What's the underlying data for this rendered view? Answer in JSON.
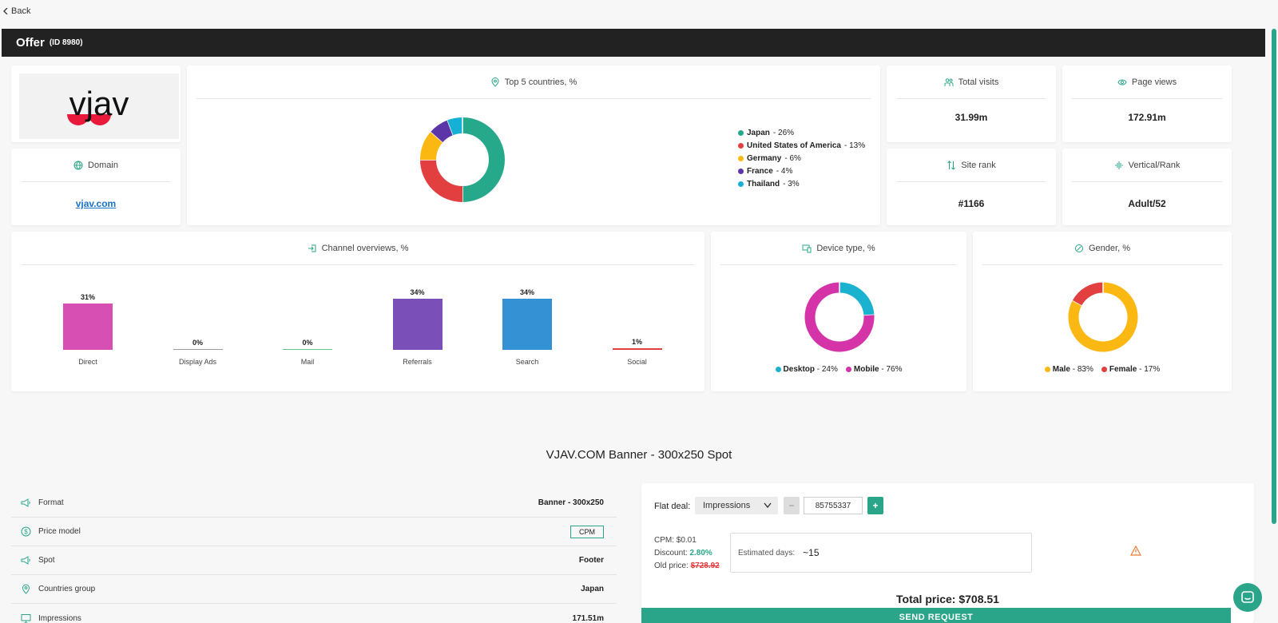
{
  "nav": {
    "back_label": "Back"
  },
  "header": {
    "title": "Offer",
    "id_label": "(ID 8980)"
  },
  "logo": {
    "text": "vjav"
  },
  "domain": {
    "title": "Domain",
    "value": "vjav.com"
  },
  "countries": {
    "title": "Top 5 countries, %",
    "items": [
      {
        "label": "Japan",
        "suffix": " - 26%",
        "color": "#26a98b"
      },
      {
        "label": "United States of America",
        "suffix": " - 13%",
        "color": "#e24040"
      },
      {
        "label": "Germany",
        "suffix": " - 6%",
        "color": "#fbb812"
      },
      {
        "label": "France",
        "suffix": " - 4%",
        "color": "#5c35a8"
      },
      {
        "label": "Thailand",
        "suffix": " - 3%",
        "color": "#16b0d6"
      }
    ]
  },
  "stats": {
    "total_visits": {
      "title": "Total visits",
      "value": "31.99m"
    },
    "page_views": {
      "title": "Page views",
      "value": "172.91m"
    },
    "site_rank": {
      "title": "Site rank",
      "value": "#1166"
    },
    "vertical_rank": {
      "title": "Vertical/Rank",
      "value": "Adult/52"
    }
  },
  "channels": {
    "title": "Channel overviews, %"
  },
  "device": {
    "title": "Device type, %",
    "items": [
      {
        "label": "Desktop",
        "suffix": " - 24%",
        "color": "#1ab2cf"
      },
      {
        "label": "Mobile",
        "suffix": " - 76%",
        "color": "#d434a8"
      }
    ]
  },
  "gender": {
    "title": "Gender, %",
    "items": [
      {
        "label": "Male",
        "suffix": " - 83%",
        "color": "#fbb812"
      },
      {
        "label": "Female",
        "suffix": " - 17%",
        "color": "#e24040"
      }
    ]
  },
  "chart_data": [
    {
      "type": "pie",
      "title": "Top 5 countries, %",
      "categories": [
        "Japan",
        "United States of America",
        "Germany",
        "France",
        "Thailand"
      ],
      "values": [
        26,
        13,
        6,
        4,
        3
      ],
      "colors": [
        "#26a98b",
        "#e24040",
        "#fbb812",
        "#5c35a8",
        "#16b0d6"
      ]
    },
    {
      "type": "bar",
      "title": "Channel overviews, %",
      "categories": [
        "Direct",
        "Display Ads",
        "Mail",
        "Referrals",
        "Search",
        "Social"
      ],
      "values": [
        31,
        0,
        0,
        34,
        34,
        1
      ],
      "value_labels": [
        "31%",
        "0%",
        "0%",
        "34%",
        "34%",
        "1%"
      ],
      "colors": [
        "#d84fb4",
        "#9e9e9e",
        "#5cc98a",
        "#7b4fb8",
        "#3492d4",
        "#e24040"
      ],
      "ylim": [
        0,
        34
      ]
    },
    {
      "type": "pie",
      "title": "Device type, %",
      "categories": [
        "Desktop",
        "Mobile"
      ],
      "values": [
        24,
        76
      ],
      "colors": [
        "#1ab2cf",
        "#d434a8"
      ]
    },
    {
      "type": "pie",
      "title": "Gender, %",
      "categories": [
        "Male",
        "Female"
      ],
      "values": [
        83,
        17
      ],
      "colors": [
        "#fbb812",
        "#e24040"
      ]
    }
  ],
  "product": {
    "title": "VJAV.COM Banner - 300x250 Spot"
  },
  "details": [
    {
      "label": "Format",
      "value": "Banner - 300x250",
      "icon": "megaphone-icon"
    },
    {
      "label": "Price model",
      "value": "CPM",
      "icon": "dollar-icon"
    },
    {
      "label": "Spot",
      "value": "Footer",
      "icon": "megaphone-icon"
    },
    {
      "label": "Countries group",
      "value": "Japan",
      "icon": "location-icon"
    },
    {
      "label": "Impressions",
      "value": "171.51m",
      "icon": "monitor-icon"
    }
  ],
  "deal": {
    "flat_label": "Flat deal:",
    "select_value": "Impressions",
    "minus": "−",
    "plus": "+",
    "quantity": "85755337",
    "cpm_label": "CPM:",
    "cpm_value": "$0.01",
    "discount_label": "Discount:",
    "discount_value": "2.80%",
    "old_price_label": "Old price:",
    "old_price_value": "$728.92",
    "est_label": "Estimated days:",
    "est_value": "~15",
    "total_label": "Total price:",
    "total_value": "$708.51",
    "send_label": "SEND REQUEST"
  }
}
